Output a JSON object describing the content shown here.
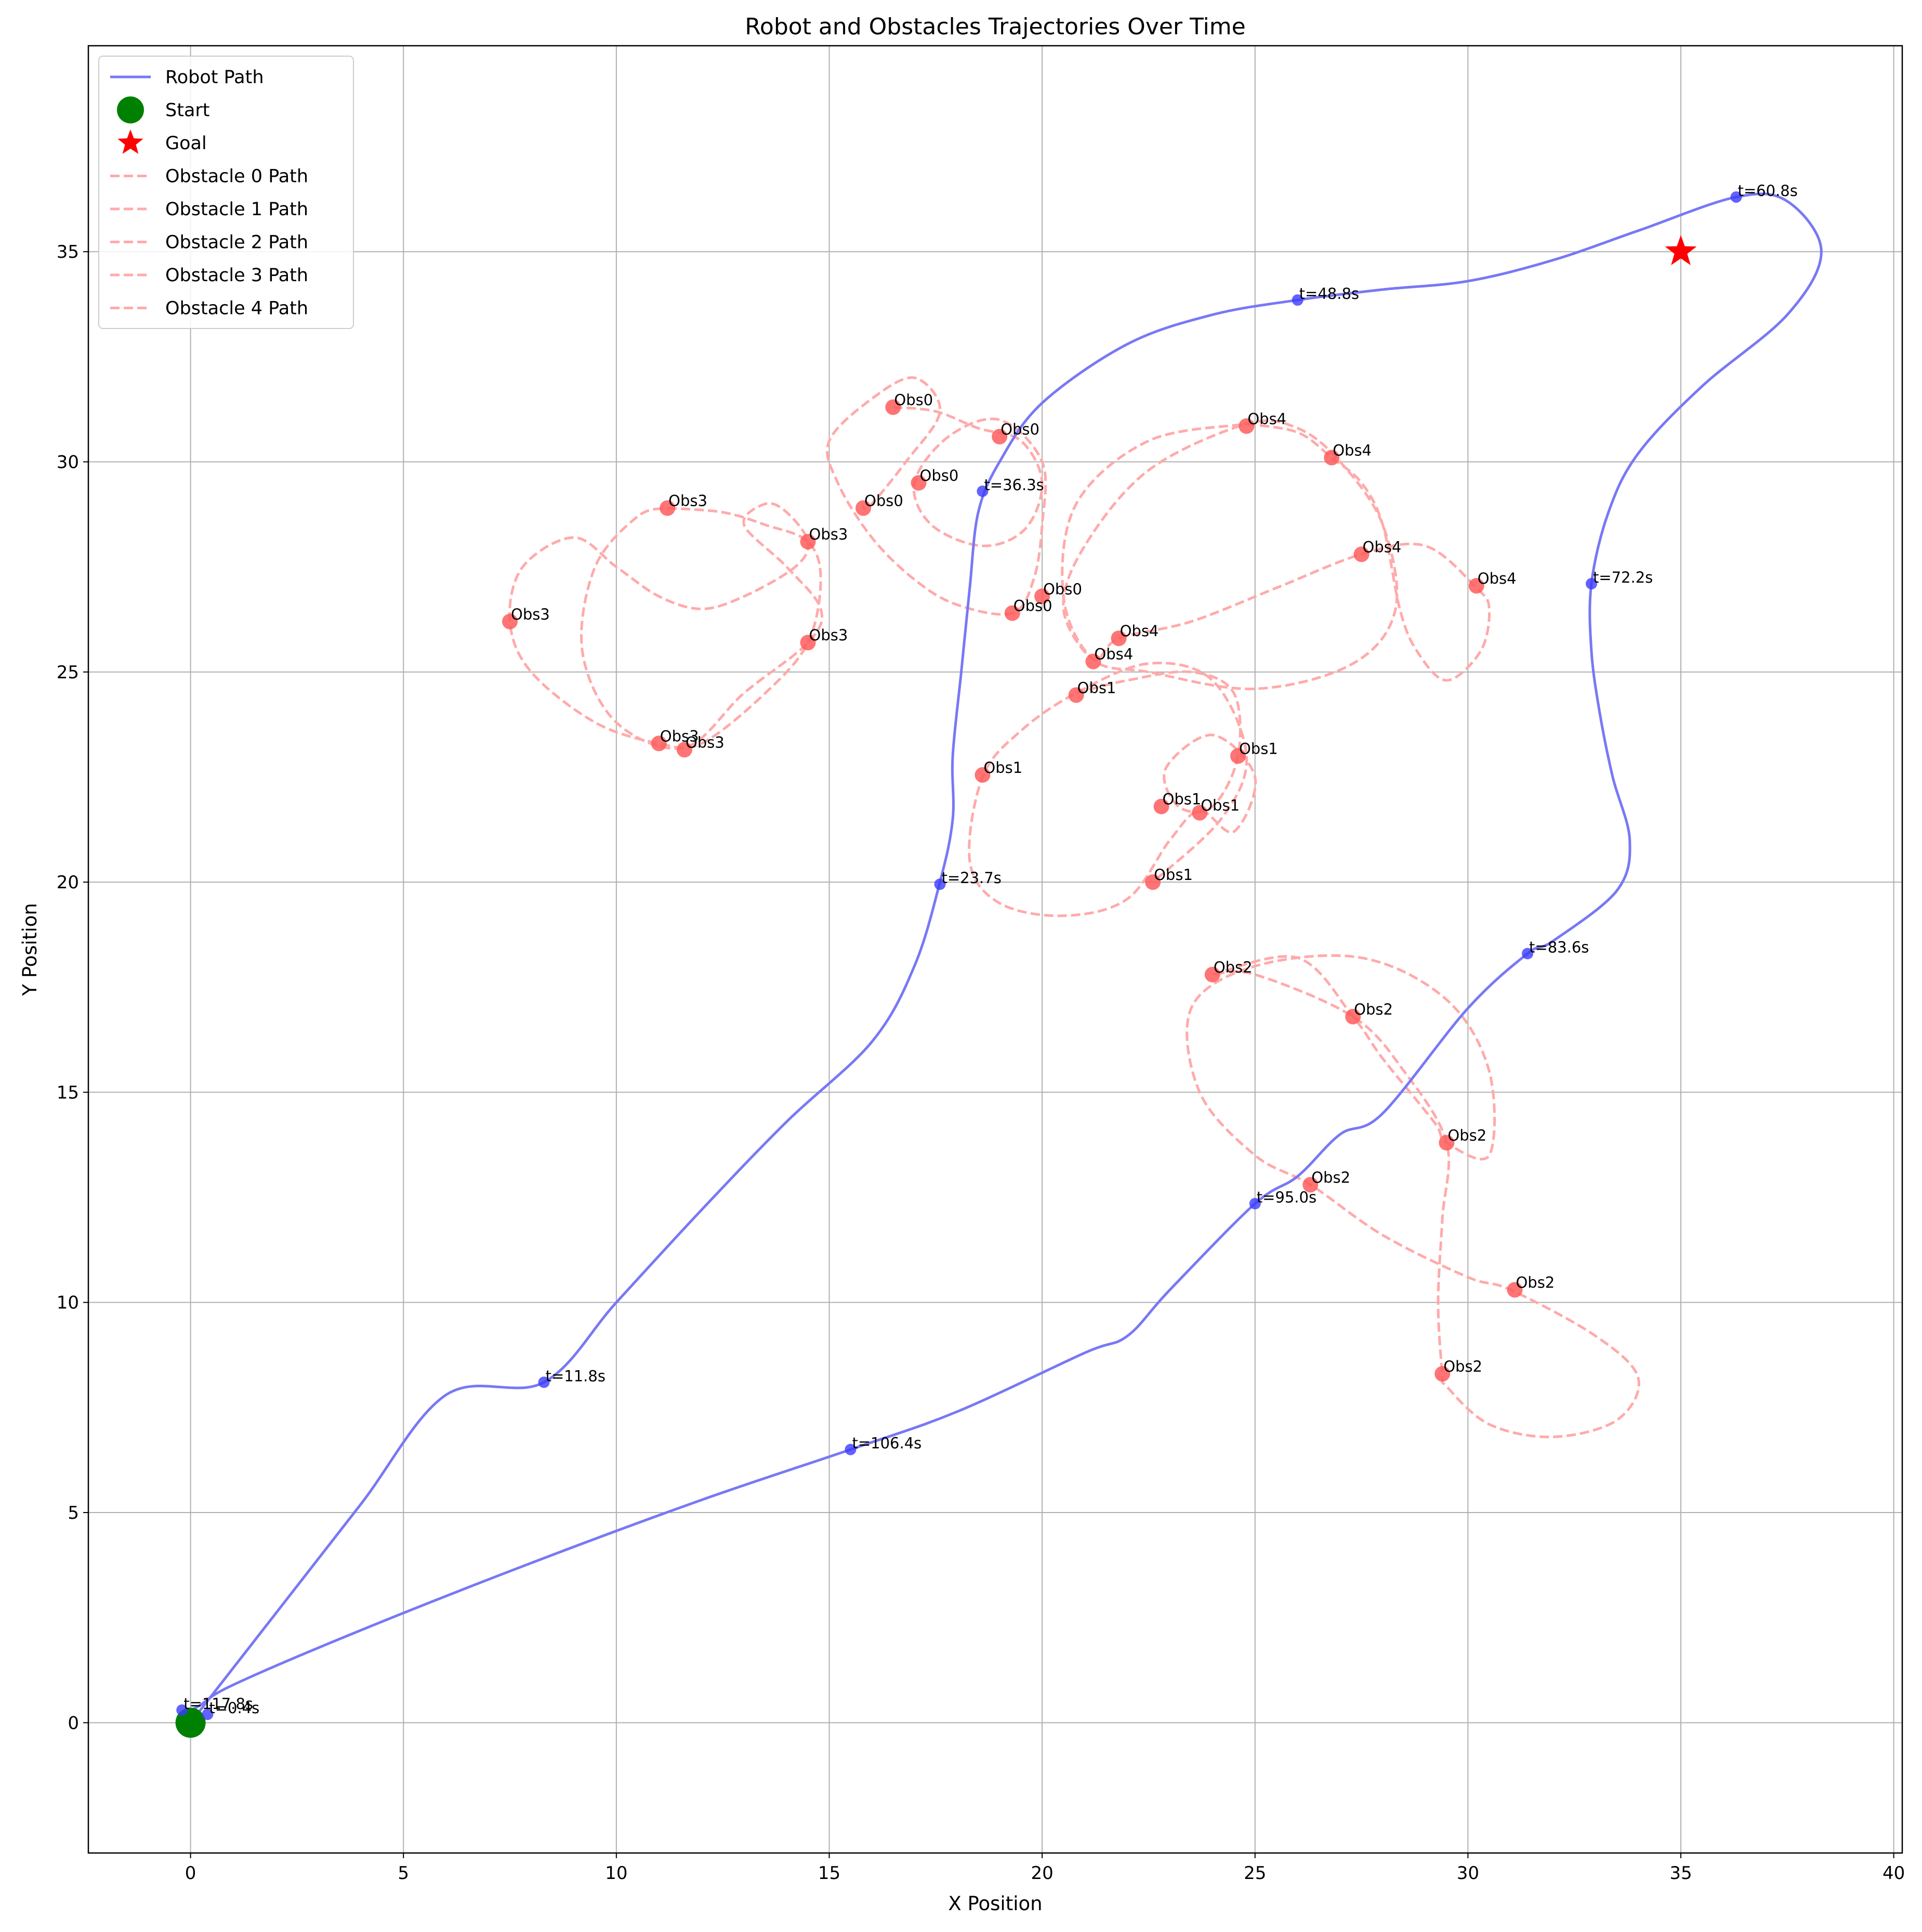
{
  "chart_data": {
    "type": "line",
    "title": "Robot and Obstacles Trajectories Over Time",
    "xlabel": "X Position",
    "ylabel": "Y Position",
    "xlim": [
      -2.4,
      40.2
    ],
    "ylim": [
      -3.1,
      39.9
    ],
    "xticks": [
      0,
      5,
      10,
      15,
      20,
      25,
      30,
      35,
      40
    ],
    "yticks": [
      0,
      5,
      10,
      15,
      20,
      25,
      30,
      35
    ],
    "grid": true,
    "legend_position": "top-left",
    "colors": {
      "robot": "#7878f5",
      "robot_marker": "#3b3bff",
      "obstacle": "#ffaaaa",
      "obstacle_marker": "#ff5c5c",
      "start": "#008000",
      "goal": "#ff0000"
    },
    "legend": [
      {
        "label": "Robot Path",
        "kind": "line"
      },
      {
        "label": "Start",
        "kind": "start"
      },
      {
        "label": "Goal",
        "kind": "goal"
      },
      {
        "label": "Obstacle 0 Path",
        "kind": "dash"
      },
      {
        "label": "Obstacle 1 Path",
        "kind": "dash"
      },
      {
        "label": "Obstacle 2 Path",
        "kind": "dash"
      },
      {
        "label": "Obstacle 3 Path",
        "kind": "dash"
      },
      {
        "label": "Obstacle 4 Path",
        "kind": "dash"
      }
    ],
    "start": {
      "x": 0,
      "y": 0
    },
    "goal": {
      "x": 35,
      "y": 35
    },
    "robot_path": [
      [
        0,
        0
      ],
      [
        2,
        2.6
      ],
      [
        4,
        5.2
      ],
      [
        6,
        7.8
      ],
      [
        8.3,
        8.1
      ],
      [
        10,
        10.0
      ],
      [
        12,
        12.2
      ],
      [
        14,
        14.3
      ],
      [
        16,
        16.2
      ],
      [
        17,
        18
      ],
      [
        17.6,
        20
      ],
      [
        17.9,
        21.5
      ],
      [
        17.9,
        23
      ],
      [
        18.1,
        25
      ],
      [
        18.3,
        27
      ],
      [
        18.5,
        28.8
      ],
      [
        19,
        30
      ],
      [
        20,
        31.4
      ],
      [
        22,
        32.8
      ],
      [
        24,
        33.5
      ],
      [
        26,
        33.85
      ],
      [
        28,
        34.1
      ],
      [
        30,
        34.3
      ],
      [
        32,
        34.8
      ],
      [
        34,
        35.5
      ],
      [
        36.3,
        36.3
      ],
      [
        37.5,
        36.2
      ],
      [
        38.3,
        35
      ],
      [
        37.5,
        33.5
      ],
      [
        35.5,
        31.8
      ],
      [
        34,
        30.2
      ],
      [
        33.3,
        28.8
      ],
      [
        32.9,
        27.1
      ],
      [
        32.9,
        25.5
      ],
      [
        33.1,
        24
      ],
      [
        33.4,
        22.5
      ],
      [
        33.8,
        21
      ],
      [
        33.5,
        19.8
      ],
      [
        32,
        18.6
      ],
      [
        31.4,
        18.3
      ],
      [
        30,
        17
      ],
      [
        28,
        14.5
      ],
      [
        27,
        14
      ],
      [
        26,
        13
      ],
      [
        25,
        12.35
      ],
      [
        23,
        10.3
      ],
      [
        22,
        9.2
      ],
      [
        21,
        8.8
      ],
      [
        18,
        7.4
      ],
      [
        15.5,
        6.5
      ],
      [
        12,
        5.3
      ],
      [
        8,
        3.8
      ],
      [
        4,
        2.2
      ],
      [
        1,
        0.9
      ],
      [
        0.2,
        0.4
      ],
      [
        -0.2,
        0.2
      ]
    ],
    "robot_markers": [
      {
        "x": 0.4,
        "y": 0.2,
        "label": "t=0.4s"
      },
      {
        "x": 8.3,
        "y": 8.1,
        "label": "t=11.8s"
      },
      {
        "x": 17.6,
        "y": 19.95,
        "label": "t=23.7s"
      },
      {
        "x": 18.6,
        "y": 29.3,
        "label": "t=36.3s"
      },
      {
        "x": 26,
        "y": 33.85,
        "label": "t=48.8s"
      },
      {
        "x": 36.3,
        "y": 36.3,
        "label": "t=60.8s"
      },
      {
        "x": 32.9,
        "y": 27.1,
        "label": "t=72.2s"
      },
      {
        "x": 31.4,
        "y": 18.3,
        "label": "t=83.6s"
      },
      {
        "x": 25,
        "y": 12.35,
        "label": "t=95.0s"
      },
      {
        "x": 15.5,
        "y": 6.5,
        "label": "t=106.4s"
      },
      {
        "x": -0.2,
        "y": 0.3,
        "label": "t=117.8s"
      }
    ],
    "obstacles": [
      {
        "name": "Obstacle 0 Path",
        "path": [
          [
            16.5,
            31.3
          ],
          [
            17.5,
            31.2
          ],
          [
            18.5,
            30.8
          ],
          [
            19.5,
            30.5
          ],
          [
            20,
            29.5
          ],
          [
            19.6,
            28.4
          ],
          [
            18.6,
            28
          ],
          [
            17.4,
            28.5
          ],
          [
            17,
            29.5
          ],
          [
            17.8,
            30.6
          ],
          [
            19,
            31
          ],
          [
            20,
            30
          ],
          [
            20,
            28.5
          ],
          [
            19.8,
            27.2
          ],
          [
            19.3,
            26.4
          ],
          [
            18,
            26.6
          ],
          [
            17,
            27.2
          ],
          [
            16,
            28.2
          ],
          [
            15.2,
            29.5
          ],
          [
            15,
            30.5
          ],
          [
            16,
            31.5
          ],
          [
            17,
            32
          ],
          [
            17.6,
            31.2
          ],
          [
            16.8,
            30
          ],
          [
            16,
            29
          ],
          [
            15.8,
            28.9
          ]
        ],
        "markers": [
          [
            16.5,
            31.3
          ],
          [
            19,
            30.6
          ],
          [
            17.1,
            29.5
          ],
          [
            15.8,
            28.9
          ],
          [
            19.3,
            26.4
          ],
          [
            20,
            26.8
          ]
        ]
      },
      {
        "name": "Obstacle 1 Path",
        "path": [
          [
            20.8,
            24.5
          ],
          [
            22,
            24.8
          ],
          [
            23.5,
            25
          ],
          [
            24.5,
            24.5
          ],
          [
            24.6,
            23
          ],
          [
            24,
            21.8
          ],
          [
            23.2,
            21.8
          ],
          [
            22.9,
            22.7
          ],
          [
            24,
            23.5
          ],
          [
            25,
            22.5
          ],
          [
            24.5,
            21.2
          ],
          [
            23.7,
            21.7
          ],
          [
            23,
            21
          ],
          [
            22,
            19.6
          ],
          [
            20.5,
            19.2
          ],
          [
            19,
            19.5
          ],
          [
            18.3,
            20.5
          ],
          [
            18.6,
            22.5
          ],
          [
            19.5,
            23.6
          ],
          [
            20.8,
            24.5
          ],
          [
            22.5,
            25.2
          ],
          [
            24,
            24.8
          ],
          [
            24.8,
            23
          ],
          [
            24.2,
            21.5
          ],
          [
            22.6,
            20
          ]
        ],
        "markers": [
          [
            20.8,
            24.45
          ],
          [
            18.6,
            22.55
          ],
          [
            22.8,
            21.8
          ],
          [
            23.7,
            21.65
          ],
          [
            24.6,
            23
          ],
          [
            22.6,
            20
          ]
        ]
      },
      {
        "name": "Obstacle 2 Path",
        "path": [
          [
            24,
            17.8
          ],
          [
            26,
            18.2
          ],
          [
            27.3,
            16.8
          ],
          [
            28,
            15.8
          ],
          [
            29.2,
            14.3
          ],
          [
            29.5,
            13.8
          ],
          [
            30.5,
            13.5
          ],
          [
            30.5,
            15.5
          ],
          [
            29.5,
            17.2
          ],
          [
            27.5,
            18.2
          ],
          [
            25,
            18
          ],
          [
            23.5,
            17
          ],
          [
            23.7,
            15
          ],
          [
            25,
            13.5
          ],
          [
            26.3,
            12.8
          ],
          [
            28,
            11.6
          ],
          [
            30,
            10.6
          ],
          [
            31,
            10.3
          ],
          [
            33,
            9.2
          ],
          [
            34,
            8.2
          ],
          [
            33.5,
            7.2
          ],
          [
            32,
            6.8
          ],
          [
            30.5,
            7.1
          ],
          [
            29.5,
            8
          ],
          [
            29.4,
            8.3
          ],
          [
            29.3,
            10
          ],
          [
            29.4,
            12
          ],
          [
            29.5,
            13.8
          ],
          [
            28.5,
            15.5
          ],
          [
            27.3,
            16.8
          ],
          [
            25,
            17.8
          ],
          [
            24,
            17.8
          ]
        ],
        "markers": [
          [
            24,
            17.8
          ],
          [
            27.3,
            16.8
          ],
          [
            29.5,
            13.8
          ],
          [
            26.3,
            12.8
          ],
          [
            31.1,
            10.3
          ],
          [
            29.4,
            8.3
          ]
        ]
      },
      {
        "name": "Obstacle 3 Path",
        "path": [
          [
            11.2,
            28.9
          ],
          [
            12.5,
            28.8
          ],
          [
            13.5,
            28.5
          ],
          [
            14.5,
            28.1
          ],
          [
            14.8,
            27.2
          ],
          [
            14.5,
            25.7
          ],
          [
            13.5,
            24.5
          ],
          [
            12,
            23.3
          ],
          [
            11,
            23.3
          ],
          [
            9.5,
            23.8
          ],
          [
            8,
            25
          ],
          [
            7.5,
            26.2
          ],
          [
            7.8,
            27.5
          ],
          [
            9,
            28.2
          ],
          [
            10,
            27.5
          ],
          [
            11,
            26.8
          ],
          [
            12,
            26.5
          ],
          [
            13,
            26.8
          ],
          [
            14.2,
            27.5
          ],
          [
            14.5,
            28.1
          ],
          [
            14,
            28.8
          ],
          [
            13.5,
            29
          ],
          [
            13,
            28.5
          ],
          [
            14,
            27.5
          ],
          [
            14.8,
            26.5
          ],
          [
            14.5,
            25.7
          ],
          [
            13,
            24.5
          ],
          [
            11.6,
            23.2
          ],
          [
            10,
            23.8
          ],
          [
            9.2,
            25.5
          ],
          [
            9.5,
            27.5
          ],
          [
            10.5,
            28.7
          ],
          [
            11.2,
            28.9
          ]
        ],
        "markers": [
          [
            11.2,
            28.9
          ],
          [
            14.5,
            28.1
          ],
          [
            7.5,
            26.2
          ],
          [
            14.5,
            25.7
          ],
          [
            11,
            23.3
          ],
          [
            11.6,
            23.15
          ]
        ]
      },
      {
        "name": "Obstacle 4 Path",
        "path": [
          [
            24.8,
            30.9
          ],
          [
            26,
            30.7
          ],
          [
            26.8,
            30.1
          ],
          [
            27.5,
            29.5
          ],
          [
            28,
            28.5
          ],
          [
            28.4,
            26.5
          ],
          [
            28.8,
            25.5
          ],
          [
            29.5,
            24.8
          ],
          [
            30.3,
            25.5
          ],
          [
            30.5,
            26.5
          ],
          [
            30.2,
            27
          ],
          [
            29,
            28
          ],
          [
            27.5,
            27.8
          ],
          [
            25.5,
            27
          ],
          [
            23.5,
            26.2
          ],
          [
            21.8,
            25.8
          ],
          [
            21.2,
            25.3
          ],
          [
            20.5,
            26.5
          ],
          [
            21,
            28
          ],
          [
            22.5,
            29.8
          ],
          [
            24.8,
            30.9
          ],
          [
            26,
            30.8
          ],
          [
            27,
            30
          ],
          [
            28,
            28.5
          ],
          [
            28.3,
            26.5
          ],
          [
            27.3,
            25.2
          ],
          [
            25,
            24.6
          ],
          [
            22.5,
            25
          ],
          [
            21.2,
            25.3
          ],
          [
            20.5,
            26.8
          ],
          [
            20.8,
            29
          ],
          [
            22.5,
            30.5
          ],
          [
            24.8,
            30.9
          ]
        ],
        "markers": [
          [
            24.8,
            30.85
          ],
          [
            26.8,
            30.1
          ],
          [
            27.5,
            27.8
          ],
          [
            30.2,
            27.05
          ],
          [
            21.8,
            25.8
          ],
          [
            21.2,
            25.25
          ]
        ]
      }
    ],
    "obstacle_labels": [
      {
        "x": 16.5,
        "y": 31.3,
        "label": "Obs0"
      },
      {
        "x": 19,
        "y": 30.6,
        "label": "Obs0"
      },
      {
        "x": 17.1,
        "y": 29.5,
        "label": "Obs0"
      },
      {
        "x": 15.8,
        "y": 28.9,
        "label": "Obs0"
      },
      {
        "x": 20,
        "y": 26.8,
        "label": "Obs0"
      },
      {
        "x": 19.3,
        "y": 26.4,
        "label": "Obs0"
      },
      {
        "x": 20.8,
        "y": 24.45,
        "label": "Obs1"
      },
      {
        "x": 18.6,
        "y": 22.55,
        "label": "Obs1"
      },
      {
        "x": 24.6,
        "y": 23,
        "label": "Obs1"
      },
      {
        "x": 22.8,
        "y": 21.8,
        "label": "Obs1"
      },
      {
        "x": 23.7,
        "y": 21.65,
        "label": "Obs1"
      },
      {
        "x": 22.6,
        "y": 20,
        "label": "Obs1"
      },
      {
        "x": 24,
        "y": 17.8,
        "label": "Obs2"
      },
      {
        "x": 27.3,
        "y": 16.8,
        "label": "Obs2"
      },
      {
        "x": 29.5,
        "y": 13.8,
        "label": "Obs2"
      },
      {
        "x": 26.3,
        "y": 12.8,
        "label": "Obs2"
      },
      {
        "x": 31.1,
        "y": 10.3,
        "label": "Obs2"
      },
      {
        "x": 29.4,
        "y": 8.3,
        "label": "Obs2"
      },
      {
        "x": 11.2,
        "y": 28.9,
        "label": "Obs3"
      },
      {
        "x": 14.5,
        "y": 28.1,
        "label": "Obs3"
      },
      {
        "x": 7.5,
        "y": 26.2,
        "label": "Obs3"
      },
      {
        "x": 14.5,
        "y": 25.7,
        "label": "Obs3"
      },
      {
        "x": 11,
        "y": 23.3,
        "label": "Obs3"
      },
      {
        "x": 11.6,
        "y": 23.15,
        "label": "Obs3"
      },
      {
        "x": 24.8,
        "y": 30.85,
        "label": "Obs4"
      },
      {
        "x": 26.8,
        "y": 30.1,
        "label": "Obs4"
      },
      {
        "x": 27.5,
        "y": 27.8,
        "label": "Obs4"
      },
      {
        "x": 30.2,
        "y": 27.05,
        "label": "Obs4"
      },
      {
        "x": 21.8,
        "y": 25.8,
        "label": "Obs4"
      },
      {
        "x": 21.2,
        "y": 25.25,
        "label": "Obs4"
      }
    ]
  }
}
